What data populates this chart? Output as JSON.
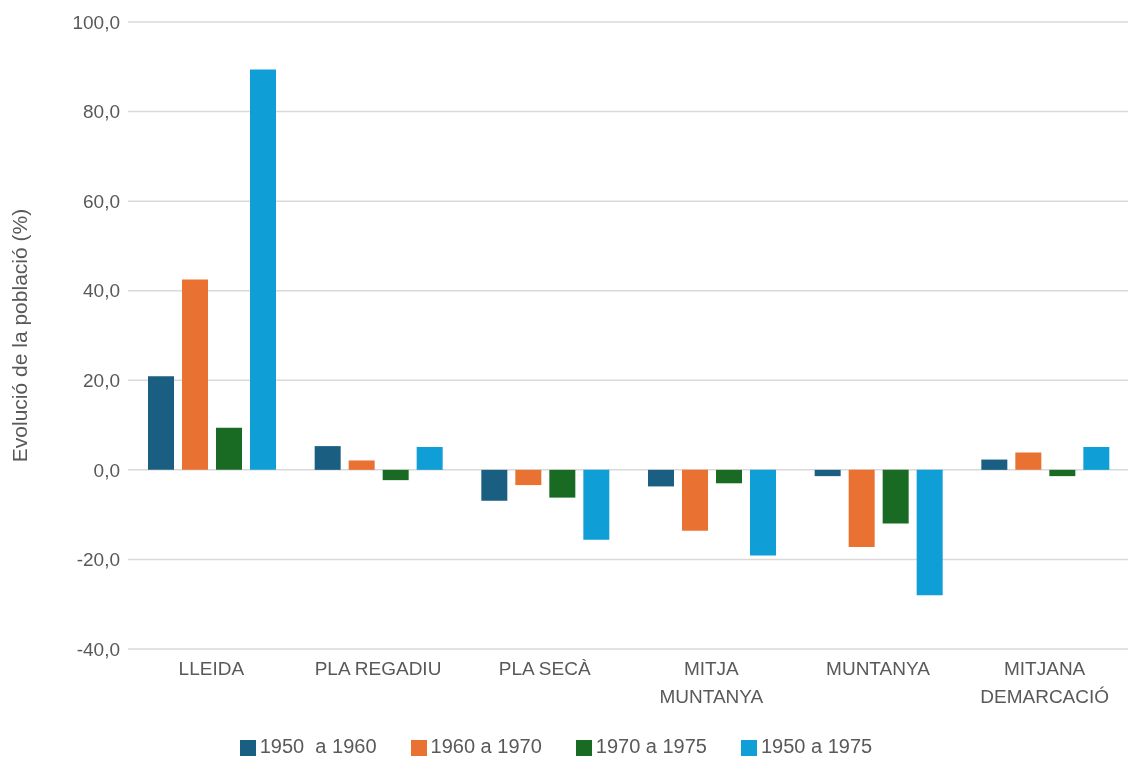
{
  "chart_data": {
    "type": "bar",
    "ylabel": "Evolució de la població (%)",
    "categories": [
      "LLEIDA",
      "PLA REGADIU",
      "PLA SECÀ",
      "MITJA MUNTANYA",
      "MUNTANYA",
      "MITJANA DEMARCACIÓ"
    ],
    "series": [
      {
        "name": "1950  a 1960",
        "color": "#1a5e82",
        "values": [
          20.9,
          5.3,
          -6.9,
          -3.7,
          -1.4,
          2.3
        ]
      },
      {
        "name": "1960 a 1970",
        "color": "#e97132",
        "values": [
          42.5,
          2.1,
          -3.4,
          -13.6,
          -17.2,
          3.9
        ]
      },
      {
        "name": "1970 a 1975",
        "color": "#196b24",
        "values": [
          9.4,
          -2.3,
          -6.2,
          -3.0,
          -12.0,
          -1.4
        ]
      },
      {
        "name": "1950 a 1975",
        "color": "#0f9ed5",
        "values": [
          89.4,
          5.1,
          -15.6,
          -19.1,
          -28.0,
          5.1
        ]
      }
    ],
    "ylim": [
      -40,
      100
    ],
    "yticks": [
      {
        "value": -40,
        "label": "-40,0"
      },
      {
        "value": -20,
        "label": "-20,0"
      },
      {
        "value": 0,
        "label": "0,0"
      },
      {
        "value": 20,
        "label": "20,0"
      },
      {
        "value": 40,
        "label": "40,0"
      },
      {
        "value": 60,
        "label": "60,0"
      },
      {
        "value": 80,
        "label": "80,0"
      },
      {
        "value": 100,
        "label": "100,0"
      }
    ],
    "grid": "y",
    "legend": "bottom"
  }
}
